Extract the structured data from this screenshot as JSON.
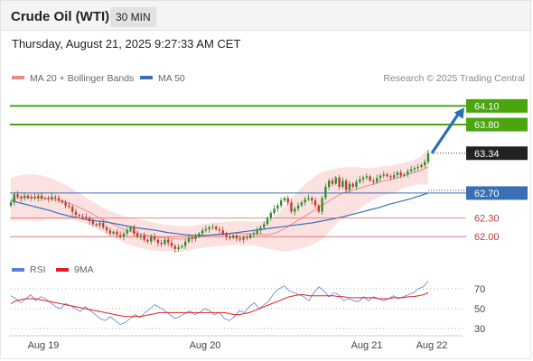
{
  "header": {
    "title": "Crude Oil (WTI)",
    "interval": "30 MIN"
  },
  "timestamp": "Thursday, August 21, 2025 9:27:33 AM CET",
  "copyright": "Research © 2025 Trading Central",
  "colors": {
    "resistance": "#4aa50f",
    "support": "#e06666",
    "ma50": "#3a6fb5",
    "bollinger": "#f08a8a",
    "bollinger_fill": "#fcdcdc",
    "candle_up": "#2e8b2e",
    "candle_down": "#c0392b",
    "rsi": "#5b7fd8",
    "rsi_ma": "#e02020",
    "arrow": "#2b6cb5",
    "current_tag": "#222222"
  },
  "chart_data": [
    {
      "type": "candlestick",
      "title": "Crude Oil (WTI)",
      "legend": [
        {
          "name": "MA 20 + Bollinger Bands",
          "color": "#f08a8a"
        },
        {
          "name": "MA 50",
          "color": "#3a6fb5"
        }
      ],
      "legend_position": "top-left",
      "ylim": [
        61.8,
        64.25
      ],
      "x_ticks": [
        "Aug 19",
        "Aug 20",
        "Aug 21",
        "Aug 22"
      ],
      "price_levels": [
        {
          "label": "64.10",
          "value": 64.1,
          "kind": "resistance"
        },
        {
          "label": "63.80",
          "value": 63.8,
          "kind": "resistance"
        },
        {
          "label": "63.34",
          "value": 63.34,
          "kind": "current"
        },
        {
          "label": "62.70",
          "value": 62.7,
          "kind": "pivot"
        },
        {
          "label": "62.30",
          "value": 62.3,
          "kind": "support"
        },
        {
          "label": "62.00",
          "value": 62.0,
          "kind": "support"
        }
      ],
      "close": [
        62.55,
        62.68,
        62.64,
        62.62,
        62.66,
        62.62,
        62.64,
        62.62,
        62.66,
        62.61,
        62.62,
        62.6,
        62.64,
        62.62,
        62.58,
        62.55,
        62.5,
        62.48,
        62.4,
        62.35,
        62.33,
        62.32,
        62.3,
        62.25,
        62.2,
        62.18,
        62.22,
        62.15,
        62.1,
        62.05,
        62.08,
        62.03,
        62.0,
        62.05,
        62.1,
        62.15,
        62.05,
        62.0,
        62.02,
        61.95,
        61.92,
        62.0,
        61.95,
        61.9,
        61.88,
        61.95,
        61.9,
        61.85,
        61.8,
        61.83,
        61.85,
        61.92,
        61.98,
        61.96,
        62.0,
        62.05,
        62.1,
        62.12,
        62.15,
        62.16,
        62.12,
        62.1,
        62.05,
        62.0,
        61.98,
        62.02,
        61.97,
        61.95,
        61.99,
        61.98,
        62.03,
        62.05,
        62.1,
        62.15,
        62.2,
        62.3,
        62.38,
        62.45,
        62.5,
        62.58,
        62.62,
        62.55,
        62.4,
        62.45,
        62.5,
        62.55,
        62.6,
        62.62,
        62.58,
        62.5,
        62.4,
        62.62,
        62.8,
        62.9,
        62.85,
        62.95,
        62.8,
        62.9,
        62.75,
        62.85,
        62.8,
        62.88,
        62.92,
        62.95,
        62.97,
        62.9,
        62.88,
        62.94,
        62.98,
        63.0,
        62.97,
        62.95,
        62.99,
        63.03,
        62.98,
        63.0,
        63.05,
        63.08,
        63.1,
        63.12,
        63.15,
        63.2,
        63.34
      ],
      "ma20_bollinger": {
        "mid": [
          62.6,
          62.62,
          62.63,
          62.62,
          62.62,
          62.61,
          62.58,
          62.55,
          62.5,
          62.44,
          62.38,
          62.3,
          62.24,
          62.18,
          62.12,
          62.08,
          62.05,
          62.02,
          62.0,
          61.98,
          61.97,
          61.96,
          61.97,
          61.99,
          62.01,
          62.03,
          62.04,
          62.05,
          62.06,
          62.05,
          62.05,
          62.04,
          62.03,
          62.06,
          62.12,
          62.2,
          62.28,
          62.36,
          62.44,
          62.52,
          62.6,
          62.68,
          62.72,
          62.76,
          62.8,
          62.84,
          62.88,
          62.91,
          62.94,
          62.98,
          63.02,
          63.06,
          63.12
        ],
        "upper": [
          62.95,
          62.98,
          63.0,
          63.0,
          62.98,
          62.94,
          62.88,
          62.82,
          62.74,
          62.66,
          62.58,
          62.5,
          62.43,
          62.38,
          62.33,
          62.3,
          62.28,
          62.25,
          62.22,
          62.2,
          62.18,
          62.17,
          62.17,
          62.18,
          62.2,
          62.22,
          62.23,
          62.24,
          62.25,
          62.25,
          62.24,
          62.24,
          62.25,
          62.34,
          62.48,
          62.62,
          62.76,
          62.88,
          62.98,
          63.05,
          63.08,
          63.1,
          63.12,
          63.12,
          63.1,
          63.1,
          63.12,
          63.14,
          63.16,
          63.18,
          63.22,
          63.28,
          63.4
        ],
        "lower": [
          62.25,
          62.26,
          62.26,
          62.24,
          62.26,
          62.28,
          62.28,
          62.28,
          62.26,
          62.22,
          62.18,
          62.1,
          62.05,
          61.98,
          61.91,
          61.86,
          61.82,
          61.79,
          61.78,
          61.76,
          61.76,
          61.75,
          61.77,
          61.8,
          61.82,
          61.84,
          61.85,
          61.86,
          61.87,
          61.85,
          61.86,
          61.84,
          61.81,
          61.78,
          61.76,
          61.78,
          61.8,
          61.84,
          61.9,
          61.99,
          62.12,
          62.26,
          62.32,
          62.4,
          62.5,
          62.58,
          62.64,
          62.68,
          62.72,
          62.78,
          62.82,
          62.84,
          62.84
        ]
      },
      "ma50": [
        62.58,
        62.54,
        62.5,
        62.46,
        62.42,
        62.37,
        62.33,
        62.3,
        62.27,
        62.25,
        62.23,
        62.2,
        62.17,
        62.14,
        62.12,
        62.1,
        62.07,
        62.05,
        62.03,
        62.02,
        62.02,
        62.03,
        62.04,
        62.06,
        62.08,
        62.1,
        62.12,
        62.14,
        62.16,
        62.18,
        62.2,
        62.22,
        62.25,
        62.28,
        62.31,
        62.35,
        62.39,
        62.43,
        62.47,
        62.52,
        62.56,
        62.6,
        62.65,
        62.7
      ],
      "forecast_arrow": {
        "from": 63.34,
        "to": 64.1
      }
    },
    {
      "type": "line",
      "title": "RSI",
      "legend": [
        {
          "name": "RSI",
          "color": "#5b7fd8"
        },
        {
          "name": "9MA",
          "color": "#e02020"
        }
      ],
      "ylim": [
        20,
        80
      ],
      "y_ticks": [
        70,
        50,
        30
      ],
      "series": [
        {
          "name": "RSI",
          "values": [
            63,
            60,
            56,
            60,
            64,
            58,
            62,
            60,
            56,
            52,
            50,
            55,
            53,
            50,
            47,
            52,
            48,
            44,
            40,
            38,
            42,
            38,
            34,
            36,
            40,
            44,
            41,
            46,
            50,
            54,
            51,
            48,
            44,
            40,
            42,
            45,
            48,
            44,
            46,
            50,
            48,
            44,
            46,
            40,
            38,
            42,
            48,
            46,
            52,
            56,
            50,
            54,
            58,
            66,
            70,
            73,
            68,
            66,
            64,
            62,
            58,
            66,
            72,
            68,
            62,
            66,
            64,
            58,
            60,
            58,
            57,
            62,
            58,
            62,
            60,
            58,
            60,
            63,
            60,
            62,
            64,
            66,
            70,
            72,
            78
          ]
        },
        {
          "name": "9MA",
          "values": [
            55,
            58,
            59,
            60,
            60,
            60,
            59,
            58,
            57,
            56,
            55,
            54,
            53,
            52,
            51,
            50,
            49,
            48,
            47,
            46,
            45,
            44,
            43,
            42,
            42,
            42,
            42,
            43,
            44,
            45,
            46,
            46,
            46,
            46,
            46,
            46,
            46,
            46,
            46,
            46,
            46,
            46,
            46,
            46,
            45,
            44,
            44,
            45,
            46,
            48,
            50,
            52,
            54,
            56,
            58,
            60,
            62,
            63,
            64,
            64,
            63,
            63,
            63,
            63,
            63,
            63,
            62,
            62,
            61,
            61,
            61,
            61,
            61,
            61,
            60,
            60,
            60,
            61,
            61,
            61,
            62,
            62,
            63,
            64,
            66
          ]
        }
      ]
    }
  ]
}
